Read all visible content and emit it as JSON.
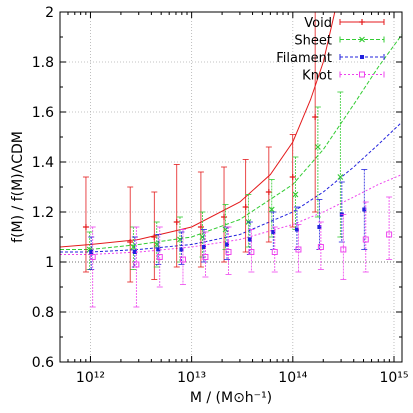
{
  "chart_data": {
    "type": "scatter",
    "xlabel": "M / (M⊙h⁻¹)",
    "ylabel": "f(M) / f(M)ΛCDM",
    "xscale": "log",
    "xlim": [
      500000000000.0,
      1200000000000000.0
    ],
    "ylim": [
      0.6,
      2.0
    ],
    "grid": true,
    "legend_position": "top-right",
    "x_tick_labels": [
      "10¹²",
      "10¹³",
      "10¹⁴",
      "10¹⁵"
    ],
    "x_tick_values": [
      1000000000000.0,
      10000000000000.0,
      100000000000000.0,
      1000000000000000.0
    ],
    "y_tick_labels": [
      "0.6",
      "0.8",
      "1",
      "1.2",
      "1.4",
      "1.6",
      "1.8",
      "2"
    ],
    "y_tick_values": [
      0.6,
      0.8,
      1.0,
      1.2,
      1.4,
      1.6,
      1.8,
      2.0
    ],
    "series": [
      {
        "name": "Void",
        "color": "#e41a1c",
        "marker": "plus",
        "points": [
          {
            "x": 950000000000.0,
            "y": 1.14,
            "lo": 0.96,
            "hi": 1.34
          },
          {
            "x": 2600000000000.0,
            "y": 1.08,
            "lo": 0.92,
            "hi": 1.3
          },
          {
            "x": 4500000000000.0,
            "y": 1.1,
            "lo": 0.93,
            "hi": 1.28
          },
          {
            "x": 7500000000000.0,
            "y": 1.16,
            "lo": 0.98,
            "hi": 1.39
          },
          {
            "x": 13000000000000.0,
            "y": 1.14,
            "lo": 0.98,
            "hi": 1.36
          },
          {
            "x": 22000000000000.0,
            "y": 1.18,
            "lo": 1.0,
            "hi": 1.38
          },
          {
            "x": 36000000000000.0,
            "y": 1.22,
            "lo": 1.04,
            "hi": 1.41
          },
          {
            "x": 61000000000000.0,
            "y": 1.28,
            "lo": 1.08,
            "hi": 1.46
          },
          {
            "x": 105000000000000.0,
            "y": 1.34,
            "lo": 1.14,
            "hi": 1.51
          },
          {
            "x": 175000000000000.0,
            "y": 1.58,
            "lo": 1.2,
            "hi": 2.0
          }
        ],
        "curve": [
          {
            "x": 500000000000.0,
            "y": 1.06
          },
          {
            "x": 1000000000000.0,
            "y": 1.07
          },
          {
            "x": 3000000000000.0,
            "y": 1.09
          },
          {
            "x": 10000000000000.0,
            "y": 1.14
          },
          {
            "x": 30000000000000.0,
            "y": 1.24
          },
          {
            "x": 60000000000000.0,
            "y": 1.35
          },
          {
            "x": 100000000000000.0,
            "y": 1.48
          },
          {
            "x": 150000000000000.0,
            "y": 1.65
          },
          {
            "x": 200000000000000.0,
            "y": 1.8
          },
          {
            "x": 260000000000000.0,
            "y": 2.0
          }
        ]
      },
      {
        "name": "Sheet",
        "color": "#33cc33",
        "marker": "cross",
        "points": [
          {
            "x": 1000000000000.0,
            "y": 1.05,
            "lo": 0.97,
            "hi": 1.12
          },
          {
            "x": 2700000000000.0,
            "y": 1.06,
            "lo": 0.97,
            "hi": 1.14
          },
          {
            "x": 4600000000000.0,
            "y": 1.07,
            "lo": 0.98,
            "hi": 1.16
          },
          {
            "x": 7800000000000.0,
            "y": 1.09,
            "lo": 1.0,
            "hi": 1.18
          },
          {
            "x": 13000000000000.0,
            "y": 1.1,
            "lo": 1.02,
            "hi": 1.2
          },
          {
            "x": 22000000000000.0,
            "y": 1.13,
            "lo": 1.05,
            "hi": 1.23
          },
          {
            "x": 37000000000000.0,
            "y": 1.16,
            "lo": 1.06,
            "hi": 1.27
          },
          {
            "x": 63000000000000.0,
            "y": 1.21,
            "lo": 1.1,
            "hi": 1.33
          },
          {
            "x": 108000000000000.0,
            "y": 1.27,
            "lo": 1.13,
            "hi": 1.42
          },
          {
            "x": 180000000000000.0,
            "y": 1.46,
            "lo": 1.18,
            "hi": 1.62
          },
          {
            "x": 300000000000000.0,
            "y": 1.34,
            "lo": 1.1,
            "hi": 1.68
          }
        ],
        "curve": [
          {
            "x": 500000000000.0,
            "y": 1.05
          },
          {
            "x": 1000000000000.0,
            "y": 1.05
          },
          {
            "x": 3000000000000.0,
            "y": 1.07
          },
          {
            "x": 10000000000000.0,
            "y": 1.1
          },
          {
            "x": 30000000000000.0,
            "y": 1.17
          },
          {
            "x": 100000000000000.0,
            "y": 1.31
          },
          {
            "x": 200000000000000.0,
            "y": 1.45
          },
          {
            "x": 400000000000000.0,
            "y": 1.63
          },
          {
            "x": 700000000000000.0,
            "y": 1.78
          },
          {
            "x": 1200000000000000.0,
            "y": 1.91
          }
        ]
      },
      {
        "name": "Filament",
        "color": "#2222dd",
        "marker": "square-filled",
        "points": [
          {
            "x": 1000000000000.0,
            "y": 1.04,
            "lo": 0.97,
            "hi": 1.1
          },
          {
            "x": 2700000000000.0,
            "y": 1.04,
            "lo": 0.98,
            "hi": 1.1
          },
          {
            "x": 4600000000000.0,
            "y": 1.05,
            "lo": 0.99,
            "hi": 1.11
          },
          {
            "x": 7800000000000.0,
            "y": 1.05,
            "lo": 0.99,
            "hi": 1.12
          },
          {
            "x": 13000000000000.0,
            "y": 1.06,
            "lo": 1.0,
            "hi": 1.13
          },
          {
            "x": 22000000000000.0,
            "y": 1.07,
            "lo": 1.01,
            "hi": 1.14
          },
          {
            "x": 37000000000000.0,
            "y": 1.09,
            "lo": 1.03,
            "hi": 1.16
          },
          {
            "x": 63000000000000.0,
            "y": 1.12,
            "lo": 1.05,
            "hi": 1.2
          },
          {
            "x": 108000000000000.0,
            "y": 1.13,
            "lo": 1.05,
            "hi": 1.22
          },
          {
            "x": 180000000000000.0,
            "y": 1.14,
            "lo": 1.05,
            "hi": 1.25
          },
          {
            "x": 300000000000000.0,
            "y": 1.19,
            "lo": 1.08,
            "hi": 1.32
          },
          {
            "x": 500000000000000.0,
            "y": 1.21,
            "lo": 1.05,
            "hi": 1.37
          }
        ],
        "curve": [
          {
            "x": 500000000000.0,
            "y": 1.04
          },
          {
            "x": 1000000000000.0,
            "y": 1.04
          },
          {
            "x": 3000000000000.0,
            "y": 1.05
          },
          {
            "x": 10000000000000.0,
            "y": 1.07
          },
          {
            "x": 30000000000000.0,
            "y": 1.11
          },
          {
            "x": 100000000000000.0,
            "y": 1.2
          },
          {
            "x": 200000000000000.0,
            "y": 1.28
          },
          {
            "x": 400000000000000.0,
            "y": 1.38
          },
          {
            "x": 700000000000000.0,
            "y": 1.47
          },
          {
            "x": 1200000000000000.0,
            "y": 1.56
          }
        ]
      },
      {
        "name": "Knot",
        "color": "#ee44ee",
        "marker": "square-open",
        "points": [
          {
            "x": 1000000000000.0,
            "y": 1.02,
            "lo": 0.82,
            "hi": 1.14
          },
          {
            "x": 2700000000000.0,
            "y": 0.99,
            "lo": 0.82,
            "hi": 1.14
          },
          {
            "x": 4600000000000.0,
            "y": 1.02,
            "lo": 0.9,
            "hi": 1.14
          },
          {
            "x": 7800000000000.0,
            "y": 1.01,
            "lo": 0.91,
            "hi": 1.13
          },
          {
            "x": 13000000000000.0,
            "y": 1.02,
            "lo": 0.94,
            "hi": 1.12
          },
          {
            "x": 22000000000000.0,
            "y": 1.04,
            "lo": 0.95,
            "hi": 1.14
          },
          {
            "x": 37000000000000.0,
            "y": 1.04,
            "lo": 0.96,
            "hi": 1.13
          },
          {
            "x": 63000000000000.0,
            "y": 1.04,
            "lo": 0.96,
            "hi": 1.14
          },
          {
            "x": 108000000000000.0,
            "y": 1.05,
            "lo": 0.96,
            "hi": 1.15
          },
          {
            "x": 180000000000000.0,
            "y": 1.06,
            "lo": 0.97,
            "hi": 1.16
          },
          {
            "x": 300000000000000.0,
            "y": 1.05,
            "lo": 0.93,
            "hi": 1.19
          },
          {
            "x": 500000000000000.0,
            "y": 1.09,
            "lo": 0.96,
            "hi": 1.24
          },
          {
            "x": 850000000000000.0,
            "y": 1.11,
            "lo": 1.01,
            "hi": 1.26
          }
        ],
        "curve": [
          {
            "x": 500000000000.0,
            "y": 1.03
          },
          {
            "x": 1000000000000.0,
            "y": 1.03
          },
          {
            "x": 3000000000000.0,
            "y": 1.04
          },
          {
            "x": 10000000000000.0,
            "y": 1.06
          },
          {
            "x": 30000000000000.0,
            "y": 1.09
          },
          {
            "x": 100000000000000.0,
            "y": 1.15
          },
          {
            "x": 200000000000000.0,
            "y": 1.2
          },
          {
            "x": 400000000000000.0,
            "y": 1.26
          },
          {
            "x": 700000000000000.0,
            "y": 1.31
          },
          {
            "x": 1200000000000000.0,
            "y": 1.35
          }
        ]
      }
    ]
  }
}
